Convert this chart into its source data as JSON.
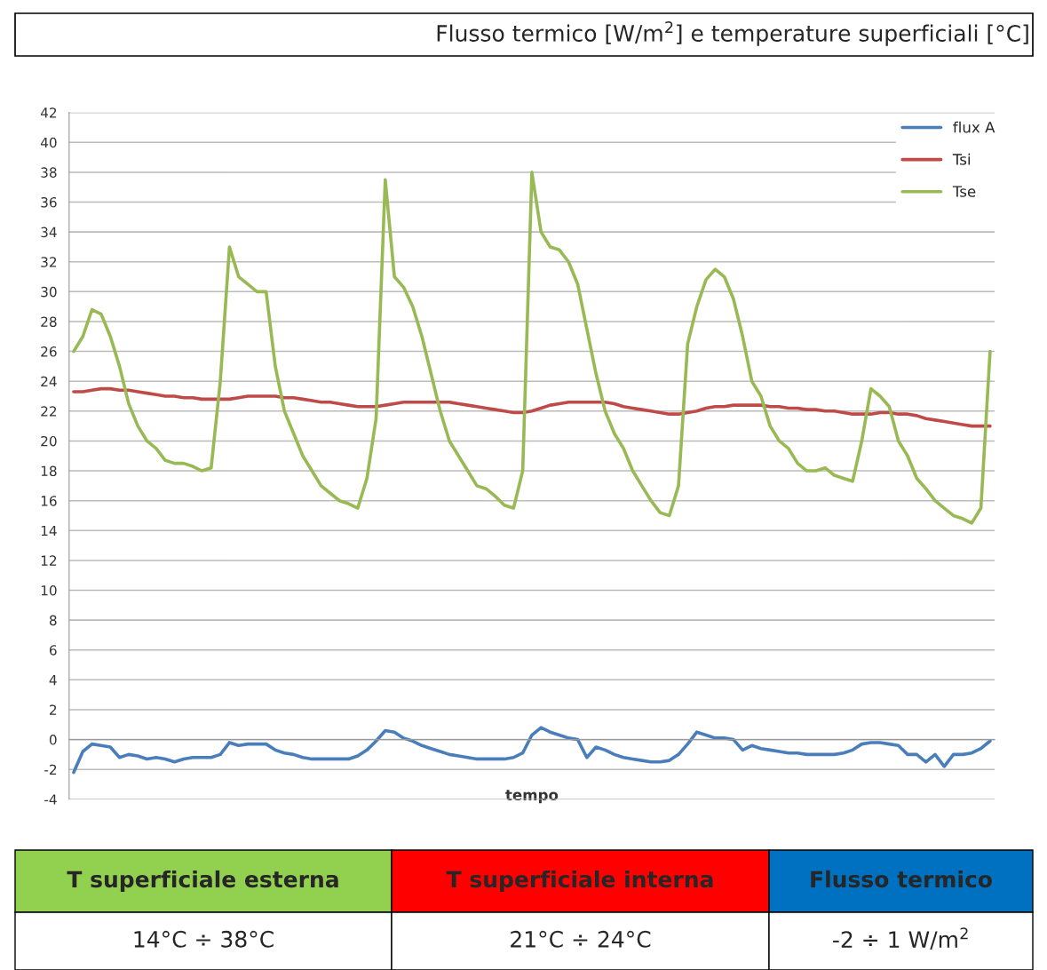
{
  "chart_data": {
    "type": "line",
    "title": "Flusso termico [W/m$^{2}$] e temperature superficiali [°C]",
    "xlabel": "tempo",
    "categories": [
      null,
      null,
      null,
      null,
      null,
      null,
      null,
      null,
      null,
      null,
      null,
      null,
      null,
      null,
      null,
      null,
      null,
      null,
      null,
      null,
      null,
      null,
      null,
      null,
      null,
      null,
      null,
      null,
      null,
      null,
      null,
      null,
      null,
      null,
      null,
      null,
      null,
      null,
      null,
      null,
      null,
      null,
      null,
      null,
      null,
      null,
      null,
      null,
      null,
      null,
      null,
      null,
      null,
      null,
      null,
      null,
      null,
      null,
      null,
      null,
      null,
      null,
      null,
      null,
      null,
      null,
      null,
      null,
      null,
      null,
      null,
      null,
      null,
      null,
      null,
      null,
      null,
      null,
      null,
      null,
      null,
      null,
      null,
      null,
      null,
      null,
      null,
      null,
      null,
      null,
      null,
      null,
      null,
      null,
      null,
      null,
      null,
      null,
      null,
      null,
      null
    ],
    "series": [
      {
        "name": "flux A",
        "color": "#4a7ebb",
        "values": [
          -2.2,
          -0.8,
          -0.3,
          -0.4,
          -0.5,
          -1.2,
          -1.0,
          -1.1,
          -1.3,
          -1.2,
          -1.3,
          -1.5,
          -1.3,
          -1.2,
          -1.2,
          -1.2,
          -1.0,
          -0.2,
          -0.4,
          -0.3,
          -0.3,
          -0.3,
          -0.7,
          -0.9,
          -1.0,
          -1.2,
          -1.3,
          -1.3,
          -1.3,
          -1.3,
          -1.3,
          -1.1,
          -0.7,
          -0.1,
          0.6,
          0.5,
          0.1,
          -0.1,
          -0.4,
          -0.6,
          -0.8,
          -1.0,
          -1.1,
          -1.2,
          -1.3,
          -1.3,
          -1.3,
          -1.3,
          -1.2,
          -0.9,
          0.3,
          0.8,
          0.5,
          0.3,
          0.1,
          0.0,
          -1.2,
          -0.5,
          -0.7,
          -1.0,
          -1.2,
          -1.3,
          -1.4,
          -1.5,
          -1.5,
          -1.4,
          -1.0,
          -0.3,
          0.5,
          0.3,
          0.1,
          0.1,
          0.0,
          -0.7,
          -0.4,
          -0.6,
          -0.7,
          -0.8,
          -0.9,
          -0.9,
          -1.0,
          -1.0,
          -1.0,
          -1.0,
          -0.9,
          -0.7,
          -0.3,
          -0.2,
          -0.2,
          -0.3,
          -0.4,
          -1.0,
          -1.0,
          -1.5,
          -1.0,
          -1.8,
          -1.0,
          -1.0,
          -0.9,
          -0.6,
          -0.1
        ]
      },
      {
        "name": "Tsi",
        "color": "#be4b48",
        "values": [
          23.3,
          23.3,
          23.4,
          23.5,
          23.5,
          23.4,
          23.4,
          23.3,
          23.2,
          23.1,
          23.0,
          23.0,
          22.9,
          22.9,
          22.8,
          22.8,
          22.8,
          22.8,
          22.9,
          23.0,
          23.0,
          23.0,
          23.0,
          22.9,
          22.9,
          22.8,
          22.7,
          22.6,
          22.6,
          22.5,
          22.4,
          22.3,
          22.3,
          22.3,
          22.4,
          22.5,
          22.6,
          22.6,
          22.6,
          22.6,
          22.6,
          22.6,
          22.5,
          22.4,
          22.3,
          22.2,
          22.1,
          22.0,
          21.9,
          21.9,
          22.0,
          22.2,
          22.4,
          22.5,
          22.6,
          22.6,
          22.6,
          22.6,
          22.6,
          22.5,
          22.3,
          22.2,
          22.1,
          22.0,
          21.9,
          21.8,
          21.8,
          21.9,
          22.0,
          22.2,
          22.3,
          22.3,
          22.4,
          22.4,
          22.4,
          22.4,
          22.3,
          22.3,
          22.2,
          22.2,
          22.1,
          22.1,
          22.0,
          22.0,
          21.9,
          21.8,
          21.8,
          21.8,
          21.9,
          21.9,
          21.8,
          21.8,
          21.7,
          21.5,
          21.4,
          21.3,
          21.2,
          21.1,
          21.0,
          21.0,
          21.0
        ]
      },
      {
        "name": "Tse",
        "color": "#98b954",
        "values": [
          26,
          27,
          28.8,
          28.5,
          27,
          25,
          22.5,
          21,
          20,
          19.5,
          18.7,
          18.5,
          18.5,
          18.3,
          18,
          18.2,
          24,
          33,
          31,
          30.5,
          30,
          30,
          25,
          22,
          20.5,
          19,
          18,
          17,
          16.5,
          16,
          15.8,
          15.5,
          17.5,
          21.5,
          37.5,
          31,
          30.3,
          29,
          27,
          24.5,
          22,
          20,
          19,
          18,
          17,
          16.8,
          16.3,
          15.7,
          15.5,
          18,
          38,
          34,
          33,
          32.8,
          32,
          30.5,
          27.5,
          24.5,
          22,
          20.5,
          19.5,
          18,
          17,
          16,
          15.2,
          15,
          17,
          26.5,
          29,
          30.8,
          31.5,
          31,
          29.5,
          27,
          24,
          23,
          21,
          20,
          19.5,
          18.5,
          18,
          18,
          18.2,
          17.7,
          17.5,
          17.3,
          20,
          23.5,
          23,
          22.3,
          20,
          19,
          17.5,
          16.8,
          16,
          15.5,
          15,
          14.8,
          14.5,
          15.5,
          26
        ]
      }
    ],
    "ylim": [
      -4,
      42
    ],
    "yticks": [
      -4,
      -2,
      0,
      2,
      4,
      6,
      8,
      10,
      12,
      14,
      16,
      18,
      20,
      22,
      24,
      26,
      28,
      30,
      32,
      34,
      36,
      38,
      40,
      42
    ],
    "grid": "y",
    "legend": "top right",
    "annotations": [
      "T superficiale esterna",
      "T superficiale interna",
      "Flusso termico",
      "14°C ÷ 38°C",
      "21°C ÷ 24°C",
      "-2 ÷ 1 W/m$^{2}$"
    ]
  }
}
